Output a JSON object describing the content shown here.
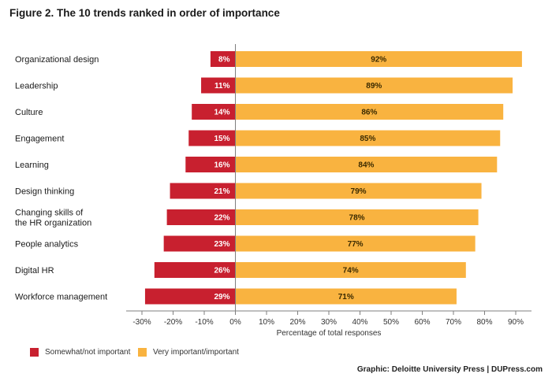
{
  "figure_title": "Figure 2. The 10 trends ranked in order of importance",
  "credit": "Graphic: Deloitte University Press | DUPress.com",
  "colors": {
    "negative": "#c8202f",
    "positive": "#f9b340",
    "axis": "#7f7f7f"
  },
  "chart_data": {
    "type": "bar",
    "orientation": "horizontal-diverging",
    "categories": [
      "Organizational design",
      "Leadership",
      "Culture",
      "Engagement",
      "Learning",
      "Design thinking",
      "Changing skills of\nthe HR organization",
      "People analytics",
      "Digital HR",
      "Workforce management"
    ],
    "series": [
      {
        "name": "Somewhat/not important",
        "values": [
          -8,
          -11,
          -14,
          -15,
          -16,
          -21,
          -22,
          -23,
          -26,
          -29
        ],
        "labels": [
          "8%",
          "11%",
          "14%",
          "15%",
          "16%",
          "21%",
          "22%",
          "23%",
          "26%",
          "29%"
        ]
      },
      {
        "name": "Very important/important",
        "values": [
          92,
          89,
          86,
          85,
          84,
          79,
          78,
          77,
          74,
          71
        ],
        "labels": [
          "92%",
          "89%",
          "86%",
          "85%",
          "84%",
          "79%",
          "78%",
          "77%",
          "74%",
          "71%"
        ]
      }
    ],
    "xlabel": "Percentage of total responses",
    "xlim": [
      -30,
      90
    ],
    "xticks": [
      -30,
      -20,
      -10,
      0,
      10,
      20,
      30,
      40,
      50,
      60,
      70,
      80,
      90
    ],
    "xtick_labels": [
      "-30%",
      "-20%",
      "-10%",
      "0%",
      "10%",
      "20%",
      "30%",
      "40%",
      "50%",
      "60%",
      "70%",
      "80%",
      "90%"
    ],
    "legend_position": "bottom-left",
    "grid": false
  }
}
